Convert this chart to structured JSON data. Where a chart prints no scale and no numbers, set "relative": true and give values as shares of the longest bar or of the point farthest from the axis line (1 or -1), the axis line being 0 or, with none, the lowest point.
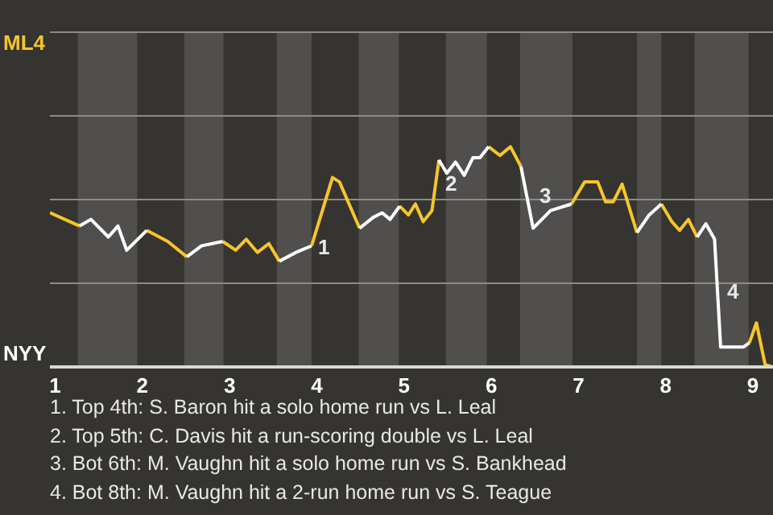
{
  "chart_data": {
    "type": "line",
    "relative": true,
    "x": [
      0.94,
      1.28,
      1.41,
      1.61,
      1.72,
      1.82,
      2.05,
      2.29,
      2.51,
      2.68,
      2.92,
      3.07,
      3.19,
      3.32,
      3.45,
      3.57,
      3.76,
      3.94,
      4.18,
      4.26,
      4.49,
      4.65,
      4.75,
      4.84,
      4.95,
      5.05,
      5.13,
      5.22,
      5.32,
      5.4,
      5.49,
      5.59,
      5.69,
      5.79,
      5.87,
      5.97,
      6.1,
      6.22,
      6.34,
      6.48,
      6.68,
      6.92,
      7.07,
      7.22,
      7.31,
      7.4,
      7.5,
      7.67,
      7.81,
      7.95,
      8.07,
      8.16,
      8.26,
      8.36,
      8.46,
      8.56,
      8.63,
      8.76,
      8.89,
      8.96,
      9.04,
      9.14,
      9.23
    ],
    "series": [
      {
        "color": "#f5c52c",
        "values": [
          0.7,
          0.64,
          null,
          null,
          null,
          null,
          0.62,
          0.57,
          0.5,
          null,
          0.57,
          0.53,
          0.58,
          0.52,
          0.56,
          0.48,
          null,
          0.55,
          0.86,
          0.84,
          0.63,
          null,
          null,
          null,
          0.73,
          0.69,
          0.74,
          0.66,
          0.71,
          0.94,
          null,
          null,
          null,
          null,
          null,
          1,
          0.96,
          1,
          0.91,
          null,
          null,
          0.74,
          0.84,
          0.84,
          0.75,
          0.75,
          0.83,
          0.61,
          null,
          0.74,
          0.66,
          0.62,
          0.67,
          0.59,
          null,
          null,
          null,
          null,
          null,
          0.11,
          0.2,
          0.01,
          0
        ]
      },
      {
        "color": "#ffffff",
        "values": [
          null,
          0.64,
          0.67,
          0.59,
          0.64,
          0.53,
          0.62,
          null,
          0.5,
          0.55,
          0.57,
          null,
          null,
          null,
          null,
          0.48,
          0.52,
          0.55,
          null,
          null,
          0.63,
          0.68,
          0.7,
          0.67,
          0.73,
          null,
          null,
          null,
          null,
          0.94,
          0.88,
          0.93,
          0.87,
          0.95,
          0.95,
          1,
          null,
          null,
          0.91,
          0.63,
          0.71,
          0.74,
          null,
          null,
          null,
          null,
          null,
          0.61,
          0.69,
          0.74,
          null,
          null,
          null,
          0.59,
          0.65,
          0.58,
          0.09,
          0.09,
          0.09,
          0.11,
          null,
          null,
          null
        ]
      }
    ],
    "xlim": [
      0.94,
      9.23
    ],
    "xticks": [
      1,
      2,
      3,
      4,
      5,
      6,
      7,
      8,
      9
    ],
    "ref_lines": [
      {
        "axis": "y",
        "value": 0.38,
        "color": "#8d8b88"
      },
      {
        "axis": "y",
        "value": 0.76,
        "color": "#8d8b88"
      },
      {
        "axis": "y",
        "value": 1.14,
        "color": "#8d8b88"
      },
      {
        "axis": "y",
        "value": 1.52,
        "color": "#8d8b88"
      }
    ],
    "bands": [
      {
        "axis": "x",
        "from": 1.26,
        "to": 1.94,
        "color": "#504f4d"
      },
      {
        "axis": "x",
        "from": 2.48,
        "to": 2.93,
        "color": "#504f4d"
      },
      {
        "axis": "x",
        "from": 3.54,
        "to": 3.94,
        "color": "#504f4d"
      },
      {
        "axis": "x",
        "from": 4.48,
        "to": 4.94,
        "color": "#504f4d"
      },
      {
        "axis": "x",
        "from": 5.48,
        "to": 5.95,
        "color": "#504f4d"
      },
      {
        "axis": "x",
        "from": 6.33,
        "to": 6.93,
        "color": "#504f4d"
      },
      {
        "axis": "x",
        "from": 7.67,
        "to": 7.95,
        "color": "#504f4d"
      },
      {
        "axis": "x",
        "from": 8.33,
        "to": 8.95,
        "color": "#504f4d"
      }
    ],
    "annotations": [
      "ML4",
      "NYY",
      {
        "text": "1",
        "x": 3.94,
        "y": 0.55
      },
      {
        "text": "2",
        "x": 5.4,
        "y": 0.94
      },
      {
        "text": "3",
        "x": 6.48,
        "y": 0.63
      },
      {
        "text": "4",
        "x": 8.63,
        "y": 0.09
      },
      "1. Top 4th: S. Baron hit a solo home run vs L. Leal",
      "2. Top 5th: C. Davis hit a run-scoring double vs L. Leal",
      "3. Bot 6th: M. Vaughn hit a solo home run vs S. Bankhead",
      "4. Bot 8th: M. Vaughn hit a 2-run home run vs S. Teague"
    ]
  }
}
